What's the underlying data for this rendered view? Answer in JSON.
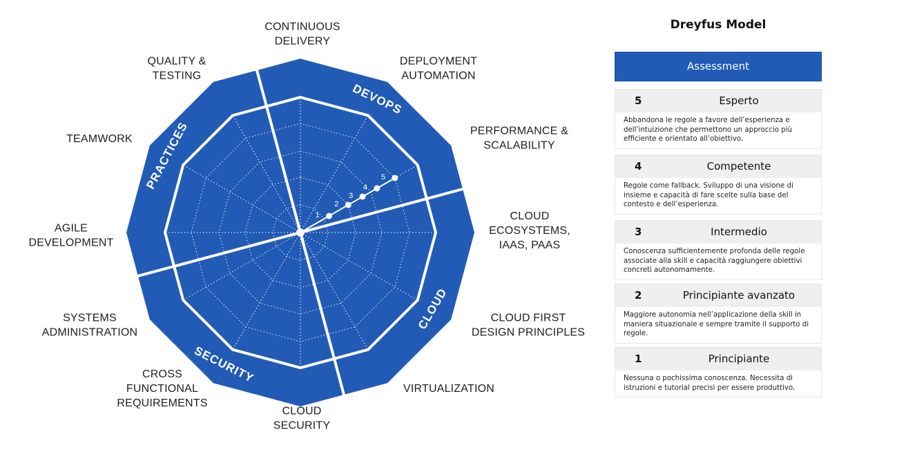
{
  "radar": {
    "fill_color": "#225bb5",
    "line_color": "#ffffff",
    "spokes": [
      {
        "id": "continuous-delivery",
        "lines": [
          "CONTINUOUS",
          "DELIVERY"
        ]
      },
      {
        "id": "deployment-automation",
        "lines": [
          "DEPLOYMENT",
          "AUTOMATION"
        ]
      },
      {
        "id": "performance-scalability",
        "lines": [
          "PERFORMANCE &",
          "SCALABILITY"
        ]
      },
      {
        "id": "cloud-ecosystems",
        "lines": [
          "CLOUD",
          "ECOSYSTEMS,",
          "IAAS, PAAS"
        ]
      },
      {
        "id": "cloud-first-design",
        "lines": [
          "CLOUD FIRST",
          "DESIGN PRINCIPLES"
        ]
      },
      {
        "id": "virtualization",
        "lines": [
          "VIRTUALIZATION"
        ]
      },
      {
        "id": "cloud-security",
        "lines": [
          "CLOUD",
          "SECURITY"
        ]
      },
      {
        "id": "cross-functional-requirements",
        "lines": [
          "CROSS",
          "FUNCTIONAL",
          "REQUIREMENTS"
        ]
      },
      {
        "id": "systems-administration",
        "lines": [
          "SYSTEMS",
          "ADMINISTRATION"
        ]
      },
      {
        "id": "agile-development",
        "lines": [
          "AGILE",
          "DEVELOPMENT"
        ]
      },
      {
        "id": "teamwork",
        "lines": [
          "TEAMWORK"
        ]
      },
      {
        "id": "quality-testing",
        "lines": [
          "QUALITY &",
          "TESTING"
        ]
      }
    ],
    "sectors": [
      {
        "id": "devops",
        "label": "DEVOPS"
      },
      {
        "id": "cloud",
        "label": "CLOUD"
      },
      {
        "id": "security",
        "label": "SECURITY"
      },
      {
        "id": "practices",
        "label": "PRACTICES"
      }
    ],
    "scale": [
      "1",
      "2",
      "3",
      "4",
      "5"
    ]
  },
  "panel": {
    "title": "Dreyfus Model",
    "header": "Assessment",
    "levels": [
      {
        "num": "5",
        "name": "Esperto",
        "desc": "Abbandona le regole a favore dell’esperienza e dell’intuizione che permettono un approccio più efficiente e orientato all’obiettivo."
      },
      {
        "num": "4",
        "name": "Competente",
        "desc": "Regole come fallback. Sviluppo di una visione di insieme e capacità di fare scelte sulla base del contesto e dell’esperienza."
      },
      {
        "num": "3",
        "name": "Intermedio",
        "desc": "Conoscenza sufficientemente profonda delle regole associate alla skill e capacità raggiungere obiettivi concreti autonomamente."
      },
      {
        "num": "2",
        "name": "Principiante avanzato",
        "desc": "Maggiore autonomia nell’applicazione della skill in maniera situazionale e sempre tramite il supporto di regole."
      },
      {
        "num": "1",
        "name": "Principiante",
        "desc": "Nessuna o pochissima conoscenza. Necessita di istruzioni e tutorial precisi per essere produttivo."
      }
    ]
  }
}
